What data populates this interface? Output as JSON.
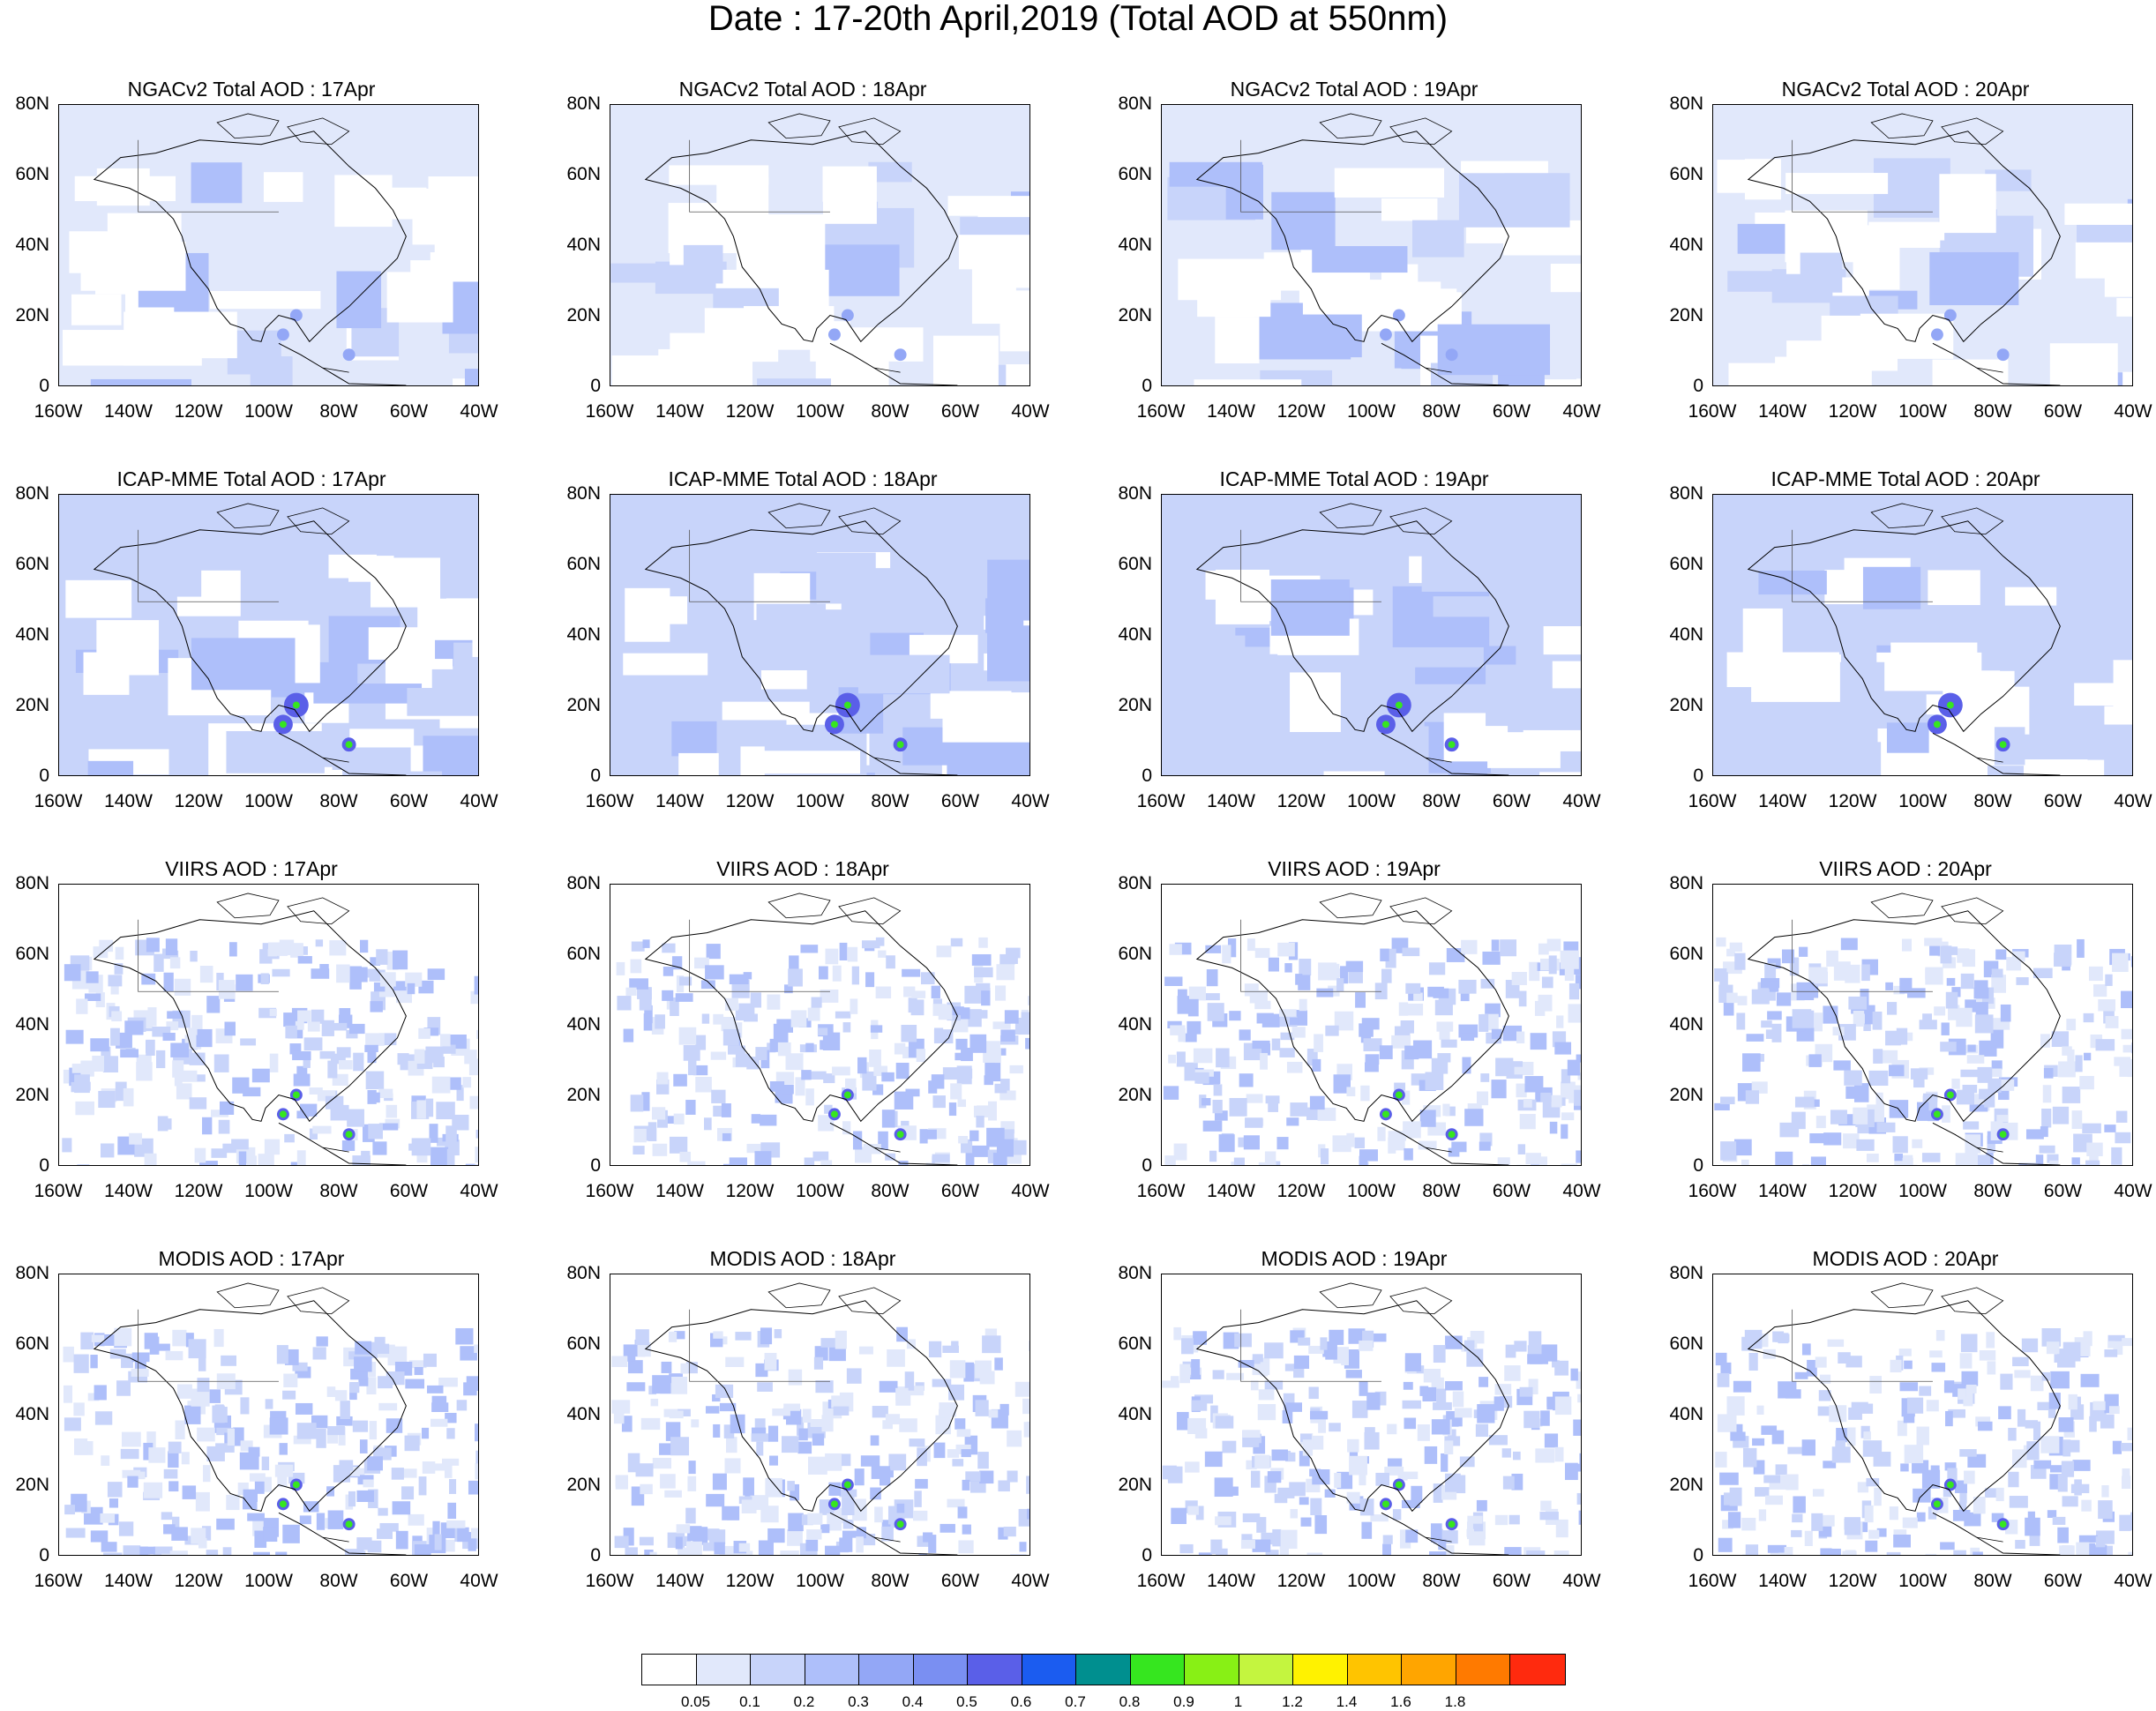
{
  "title": "Date : 17-20th April,2019 (Total AOD at 550nm)",
  "lat_labels": [
    "80N",
    "60N",
    "40N",
    "20N",
    "0"
  ],
  "lon_labels": [
    "160W",
    "140W",
    "120W",
    "100W",
    "80W",
    "60W",
    "40W"
  ],
  "rows": [
    {
      "source": "NGACv2",
      "titles": [
        "NGACv2 Total AOD : 17Apr",
        "NGACv2 Total AOD : 18Apr",
        "NGACv2 Total AOD : 19Apr",
        "NGACv2 Total AOD : 20Apr"
      ],
      "style": "model-light"
    },
    {
      "source": "ICAP-MME",
      "titles": [
        "ICAP-MME Total AOD : 17Apr",
        "ICAP-MME Total AOD : 18Apr",
        "ICAP-MME Total AOD : 19Apr",
        "ICAP-MME Total AOD : 20Apr"
      ],
      "style": "model-dense"
    },
    {
      "source": "VIIRS",
      "titles": [
        "VIIRS AOD : 17Apr",
        "VIIRS AOD : 18Apr",
        "VIIRS AOD : 19Apr",
        "VIIRS AOD : 20Apr"
      ],
      "style": "satellite"
    },
    {
      "source": "MODIS",
      "titles": [
        "MODIS AOD : 17Apr",
        "MODIS AOD : 18Apr",
        "MODIS AOD : 19Apr",
        "MODIS AOD : 20Apr"
      ],
      "style": "satellite"
    }
  ],
  "colorbar": {
    "colors": [
      "#ffffff",
      "#e1e8fb",
      "#c8d4fa",
      "#aebffa",
      "#93a7f6",
      "#7a8ff2",
      "#5a5fe8",
      "#1b5cf0",
      "#008f8f",
      "#36e61f",
      "#88f015",
      "#c4f53f",
      "#fff200",
      "#ffc400",
      "#ffa500",
      "#ff7a00",
      "#ff2a0e"
    ],
    "labels": [
      "0.05",
      "0.1",
      "0.2",
      "0.3",
      "0.4",
      "0.5",
      "0.6",
      "0.7",
      "0.8",
      "0.9",
      "1",
      "1.2",
      "1.4",
      "1.6",
      "1.8"
    ]
  }
}
